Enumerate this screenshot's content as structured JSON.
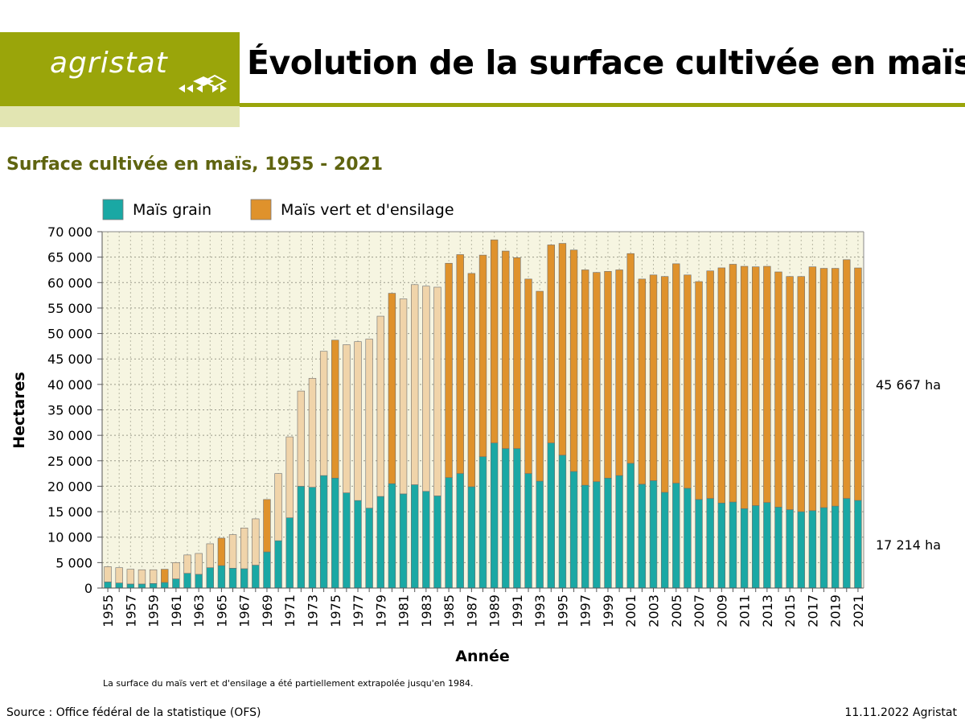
{
  "header": {
    "logo_text": "agristat",
    "title": "Évolution de la surface cultivée en maïs"
  },
  "colors": {
    "brand_olive": "#9aa50a",
    "brand_light": "#e2e5b2",
    "grain": "#1aa8a4",
    "silage": "#df922c",
    "silage_extrapolated": "#f0d4aa",
    "plot_bg": "#f6f5e1",
    "subtitle": "#5f6410"
  },
  "chart_data": {
    "type": "bar",
    "stacked": true,
    "title": "Surface cultivée en maïs, 1955 - 2021",
    "xlabel": "Année",
    "ylabel": "Hectares",
    "ylim": [
      0,
      70000
    ],
    "yticks": [
      0,
      5000,
      10000,
      15000,
      20000,
      25000,
      30000,
      35000,
      40000,
      45000,
      50000,
      55000,
      60000,
      65000,
      70000
    ],
    "ytick_labels": [
      "0",
      "5 000",
      "10 000",
      "15 000",
      "20 000",
      "25 000",
      "30 000",
      "35 000",
      "40 000",
      "45 000",
      "50 000",
      "55 000",
      "60 000",
      "65 000",
      "70 000"
    ],
    "grid": true,
    "legend_position": "top-left",
    "categories": [
      "1955",
      "1956",
      "1957",
      "1958",
      "1959",
      "1960",
      "1961",
      "1962",
      "1963",
      "1964",
      "1965",
      "1966",
      "1967",
      "1968",
      "1969",
      "1970",
      "1971",
      "1972",
      "1973",
      "1974",
      "1975",
      "1976",
      "1977",
      "1978",
      "1979",
      "1980",
      "1981",
      "1982",
      "1983",
      "1984",
      "1985",
      "1986",
      "1987",
      "1988",
      "1989",
      "1990",
      "1991",
      "1992",
      "1993",
      "1994",
      "1995",
      "1996",
      "1997",
      "1998",
      "1999",
      "2000",
      "2001",
      "2002",
      "2003",
      "2004",
      "2005",
      "2006",
      "2007",
      "2008",
      "2009",
      "2010",
      "2011",
      "2012",
      "2013",
      "2014",
      "2015",
      "2016",
      "2017",
      "2018",
      "2019",
      "2020",
      "2021"
    ],
    "xtick_labels": [
      "1955",
      "1957",
      "1959",
      "1961",
      "1963",
      "1965",
      "1967",
      "1969",
      "1971",
      "1973",
      "1975",
      "1977",
      "1979",
      "1981",
      "1983",
      "1985",
      "1987",
      "1989",
      "1991",
      "1993",
      "1995",
      "1997",
      "1999",
      "2001",
      "2003",
      "2005",
      "2007",
      "2009",
      "2011",
      "2013",
      "2015",
      "2017",
      "2019",
      "2021"
    ],
    "series": [
      {
        "name": "Maïs grain",
        "values": [
          1200,
          1000,
          800,
          800,
          900,
          1100,
          1800,
          2900,
          2700,
          4000,
          4400,
          3900,
          3800,
          4500,
          7100,
          9300,
          13800,
          20000,
          19800,
          22100,
          21600,
          18700,
          17200,
          15700,
          18000,
          20500,
          18500,
          20300,
          19000,
          18100,
          21700,
          22500,
          19900,
          25800,
          28500,
          27400,
          27400,
          22500,
          21000,
          28500,
          26100,
          22900,
          20200,
          20900,
          21600,
          22100,
          24500,
          20400,
          21100,
          18800,
          20600,
          19600,
          17400,
          17600,
          16700,
          16900,
          15600,
          16200,
          16800,
          15900,
          15400,
          15000,
          15200,
          15800,
          16100,
          17600,
          17214
        ]
      },
      {
        "name": "Maïs vert et d'ensilage",
        "values": [
          3000,
          3000,
          2900,
          2800,
          2700,
          2600,
          3200,
          3600,
          4100,
          4700,
          5400,
          6600,
          8000,
          9100,
          10300,
          13200,
          15900,
          18700,
          21400,
          24400,
          27100,
          29100,
          31200,
          33200,
          35400,
          37400,
          38300,
          39300,
          40300,
          41000,
          42100,
          43000,
          41900,
          39600,
          39900,
          38800,
          37500,
          38200,
          37300,
          38900,
          41600,
          43500,
          42300,
          41100,
          40600,
          40400,
          41200,
          40300,
          40400,
          42400,
          43100,
          41900,
          42800,
          44700,
          46200,
          46700,
          47600,
          46900,
          46400,
          46200,
          45800,
          46200,
          47900,
          47000,
          46700,
          46900,
          45667
        ],
        "extrapolated_years": [
          "1955",
          "1956",
          "1957",
          "1958",
          "1959",
          "1961",
          "1962",
          "1963",
          "1964",
          "1966",
          "1967",
          "1968",
          "1970",
          "1971",
          "1972",
          "1973",
          "1974",
          "1976",
          "1977",
          "1978",
          "1979",
          "1981",
          "1982",
          "1983",
          "1984"
        ]
      }
    ],
    "annotations": {
      "silage_2021": "45 667 ha",
      "grain_2021": "17 214 ha"
    }
  },
  "footer": {
    "note": "La surface du maïs vert et d'ensilage a été partiellement extrapolée jusqu'en 1984.",
    "source": "Source : Office fédéral de la statistique (OFS)",
    "date_credit": "11.11.2022 Agristat"
  }
}
